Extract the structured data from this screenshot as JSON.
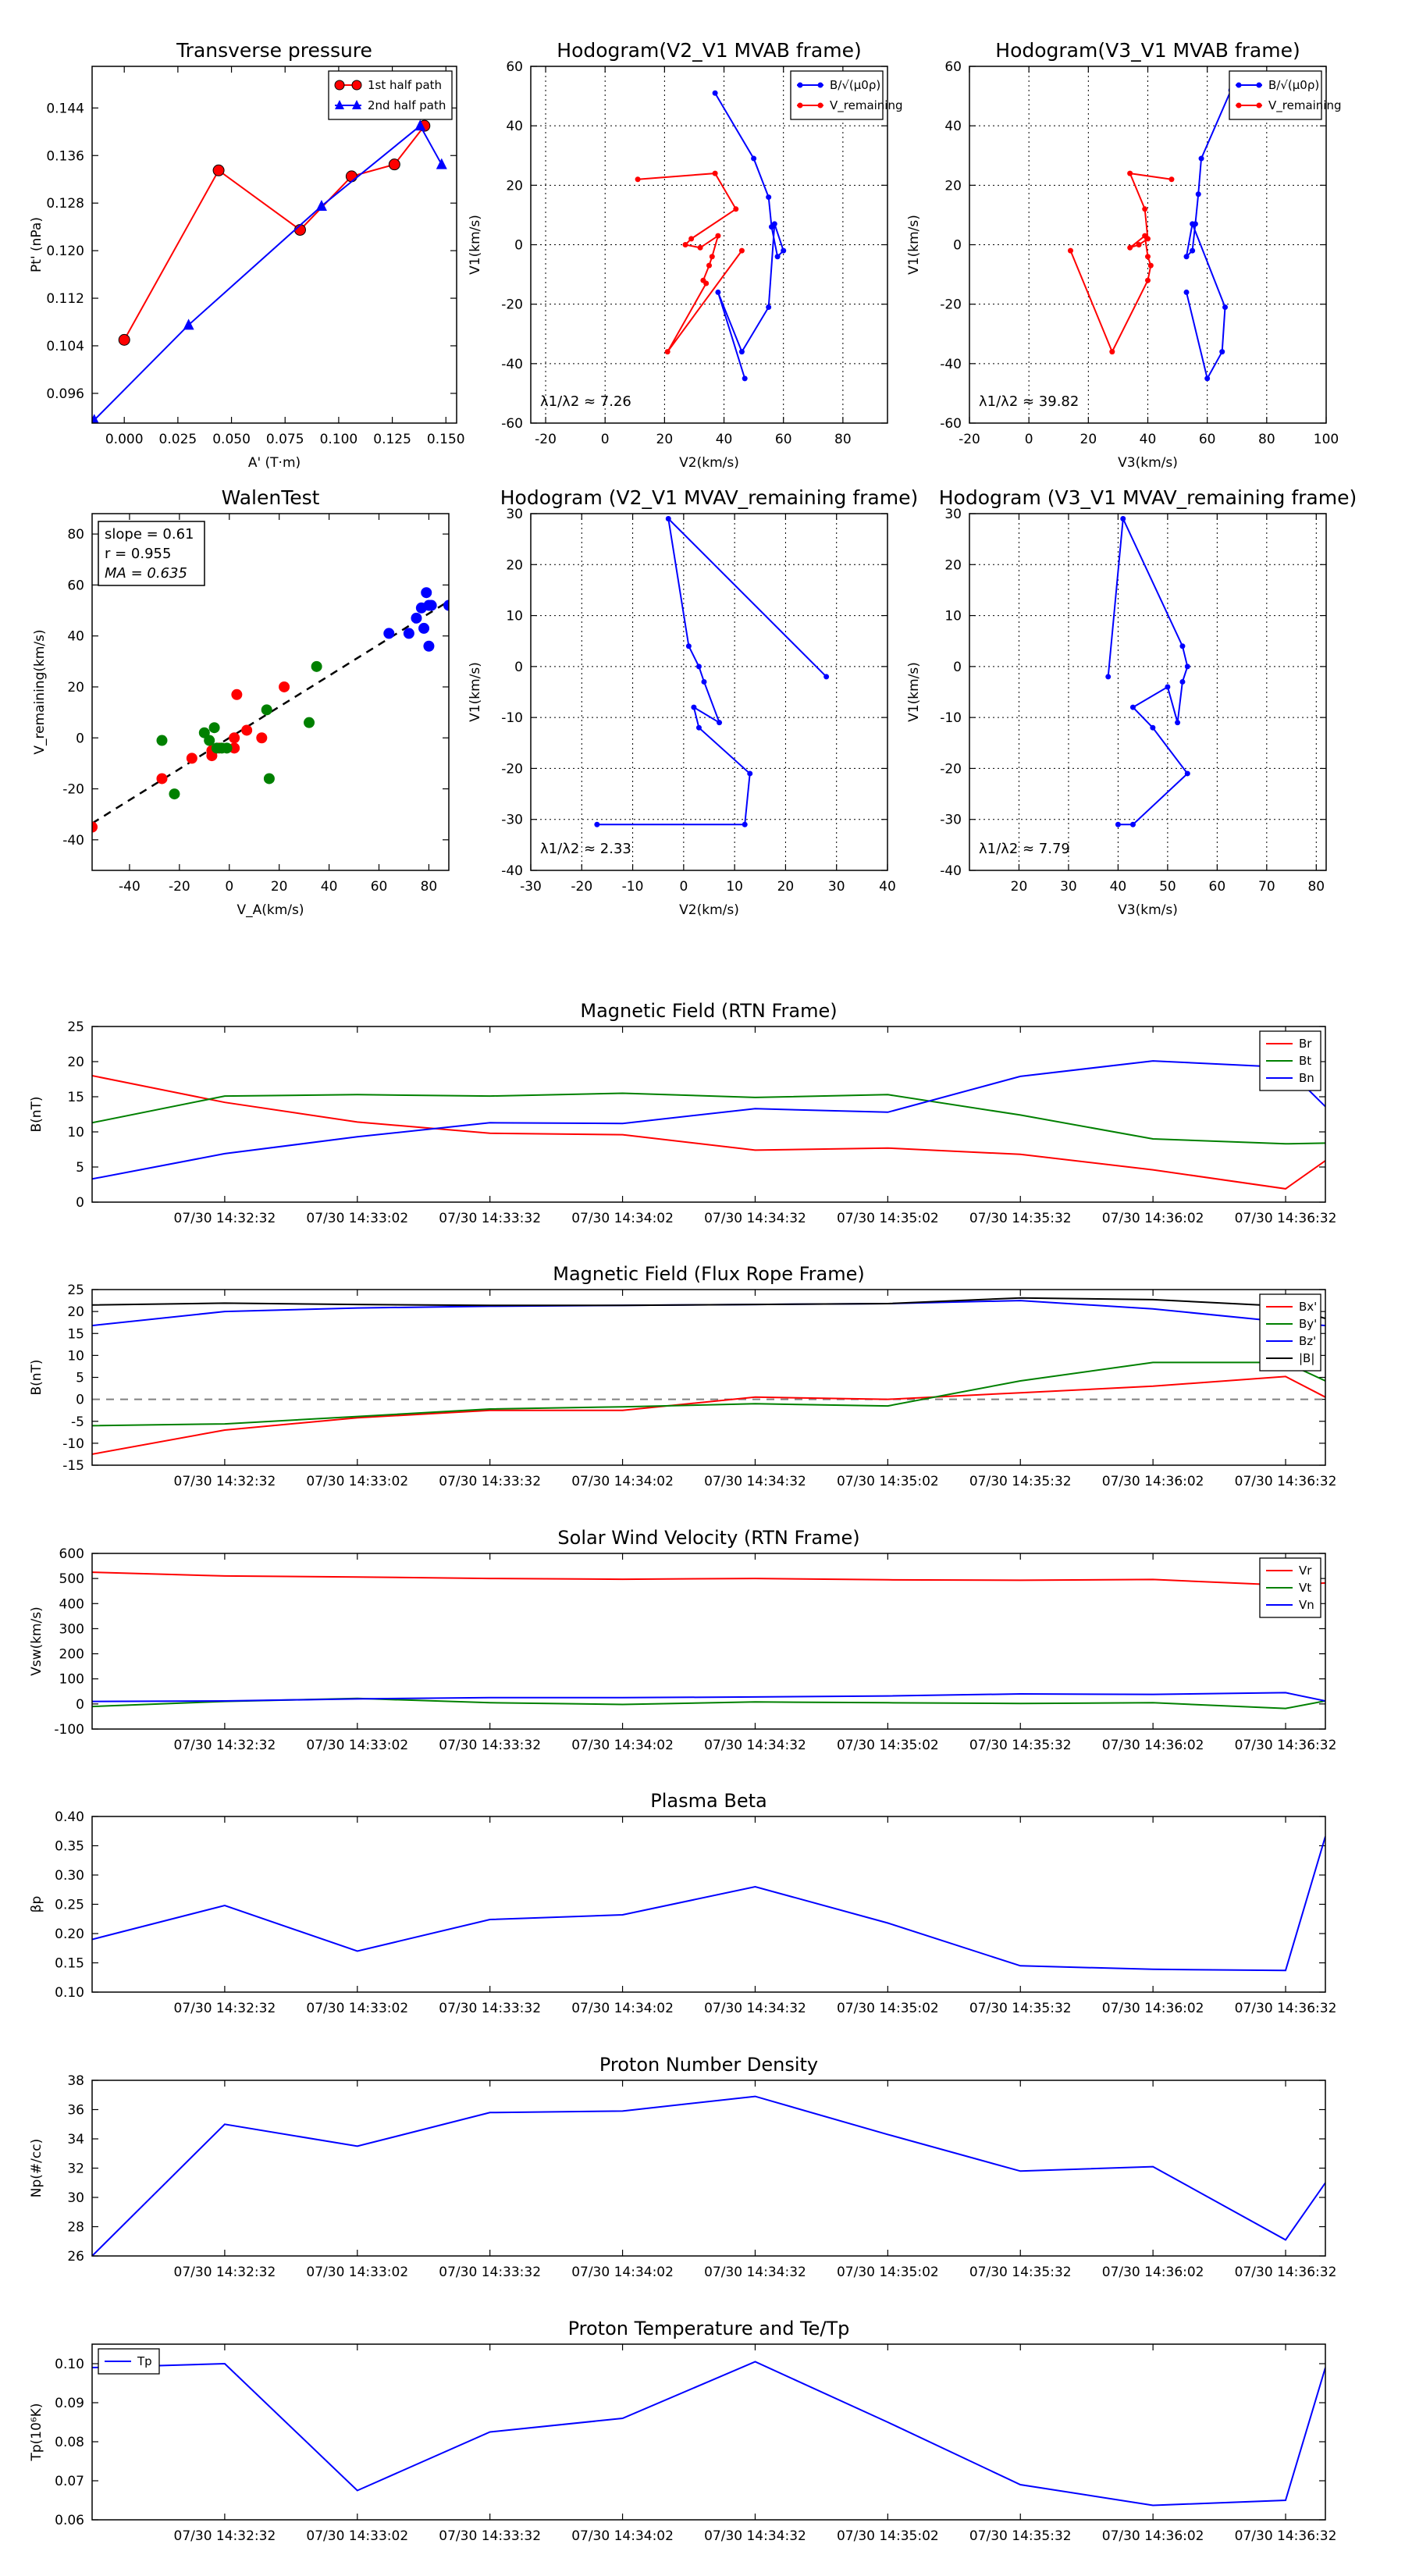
{
  "colors": {
    "red": "#ff0000",
    "green": "#008000",
    "blue": "#0000ff",
    "black": "#000000",
    "gray": "#808080"
  },
  "time_ticks": [
    "07/30 14:32:32",
    "07/30 14:33:02",
    "07/30 14:33:32",
    "07/30 14:34:02",
    "07/30 14:34:32",
    "07/30 14:35:02",
    "07/30 14:35:32",
    "07/30 14:36:02",
    "07/30 14:36:32"
  ],
  "chart_data": [
    {
      "id": "pt",
      "type": "line",
      "title": "Transverse pressure",
      "xlabel": "A' (T·m)",
      "ylabel": "Pt' (nPa)",
      "xlim": [
        -0.015,
        0.155
      ],
      "ylim": [
        0.091,
        0.151
      ],
      "xticks": [
        0.0,
        0.025,
        0.05,
        0.075,
        0.1,
        0.125,
        0.15
      ],
      "xtick_labels": [
        "0.000",
        "0.025",
        "0.050",
        "0.075",
        "0.100",
        "0.125",
        "0.150"
      ],
      "yticks": [
        0.096,
        0.104,
        0.112,
        0.12,
        0.128,
        0.136,
        0.144
      ],
      "ytick_labels": [
        "0.096",
        "0.104",
        "0.112",
        "0.120",
        "0.128",
        "0.136",
        "0.144"
      ],
      "legend": "top-right",
      "series": [
        {
          "name": "1st half path",
          "color": "#ff0000",
          "marker": "circle",
          "x": [
            0.0,
            0.044,
            0.082,
            0.106,
            0.126,
            0.14
          ],
          "y": [
            0.105,
            0.1335,
            0.1235,
            0.1325,
            0.1345,
            0.141
          ]
        },
        {
          "name": "2nd half path",
          "color": "#0000ff",
          "marker": "triangle",
          "x": [
            -0.014,
            0.03,
            0.092,
            0.138,
            0.148
          ],
          "y": [
            0.0915,
            0.1075,
            0.1275,
            0.141,
            0.1345
          ]
        }
      ]
    },
    {
      "id": "h1",
      "type": "line",
      "title": "Hodogram(V2_V1 MVAB frame)",
      "xlabel": "V2(km/s)",
      "ylabel": "V1(km/s)",
      "xlim": [
        -25,
        95
      ],
      "ylim": [
        -60,
        60
      ],
      "xticks": [
        -20,
        0,
        20,
        40,
        60,
        80
      ],
      "yticks": [
        -60,
        -40,
        -20,
        0,
        20,
        40,
        60
      ],
      "annotation": "λ1/λ2 ≈ 7.26",
      "legend": "top-right",
      "grid": true,
      "series": [
        {
          "name": "B/√(μ0ρ)",
          "color": "#0000ff",
          "marker": "dot",
          "x": [
            37,
            50,
            55,
            56,
            58,
            60,
            57,
            55,
            46,
            38,
            47
          ],
          "y": [
            51,
            29,
            16,
            6,
            -4,
            -2,
            7,
            -21,
            -36,
            -16,
            -45
          ]
        },
        {
          "name": "V_remaining",
          "color": "#ff0000",
          "marker": "dot",
          "x": [
            11,
            37,
            44,
            29,
            27,
            32,
            38,
            36,
            35,
            33,
            34,
            21,
            46
          ],
          "y": [
            22,
            24,
            12,
            2,
            0,
            -1,
            3,
            -4,
            -7,
            -12,
            -13,
            -36,
            -2
          ]
        }
      ]
    },
    {
      "id": "h2",
      "type": "line",
      "title": "Hodogram(V3_V1 MVAB frame)",
      "xlabel": "V3(km/s)",
      "ylabel": "V1(km/s)",
      "xlim": [
        -20,
        100
      ],
      "ylim": [
        -60,
        60
      ],
      "xticks": [
        -20,
        0,
        20,
        40,
        60,
        80,
        100
      ],
      "yticks": [
        -60,
        -40,
        -20,
        0,
        20,
        40,
        60
      ],
      "annotation": "λ1/λ2 ≈ 39.82",
      "legend": "top-right",
      "grid": true,
      "series": [
        {
          "name": "B/√(μ0ρ)",
          "color": "#0000ff",
          "marker": "dot",
          "x": [
            68,
            58,
            57,
            56,
            55,
            53,
            55,
            66,
            65,
            60,
            53
          ],
          "y": [
            52,
            29,
            17,
            7,
            -2,
            -4,
            7,
            -21,
            -36,
            -45,
            -16
          ]
        },
        {
          "name": "V_remaining",
          "color": "#ff0000",
          "marker": "dot",
          "x": [
            48,
            34,
            39,
            40,
            37,
            34,
            39,
            40,
            41,
            40,
            28,
            14
          ],
          "y": [
            22,
            24,
            12,
            2,
            0,
            -1,
            3,
            -4,
            -7,
            -12,
            -36,
            -2
          ]
        }
      ]
    },
    {
      "id": "walen",
      "type": "scatter",
      "title": "WalenTest",
      "xlabel": "V_A(km/s)",
      "ylabel": "V_remaining(km/s)",
      "xlim": [
        -55,
        88
      ],
      "ylim": [
        -52,
        88
      ],
      "xticks": [
        -40,
        -20,
        0,
        20,
        40,
        60,
        80
      ],
      "yticks": [
        -40,
        -20,
        0,
        20,
        40,
        60,
        80
      ],
      "fit_line": {
        "slope": 0.61,
        "intercept": 0
      },
      "annotations": {
        "slope": "slope = 0.61",
        "r": "r = 0.955",
        "ma": "MA = 0.635"
      },
      "series": [
        {
          "name": "red",
          "color": "#ff0000",
          "x": [
            -55,
            -27,
            -15,
            -7,
            -7,
            -4,
            2,
            2,
            3,
            7,
            13,
            22
          ],
          "y": [
            -35,
            -16,
            -8,
            -5,
            -7,
            -4,
            0,
            -4,
            17,
            3,
            0,
            20
          ]
        },
        {
          "name": "green",
          "color": "#008000",
          "x": [
            -27,
            -22,
            -10,
            -8,
            -6,
            -5,
            -3,
            -1,
            15,
            16,
            32,
            35
          ],
          "y": [
            -1,
            -22,
            2,
            -1,
            4,
            -4,
            -4,
            -4,
            11,
            -16,
            6,
            28
          ]
        },
        {
          "name": "blue",
          "color": "#0000ff",
          "x": [
            64,
            72,
            75,
            77,
            78,
            79,
            80,
            80,
            81,
            88
          ],
          "y": [
            41,
            41,
            47,
            51,
            43,
            57,
            36,
            52,
            52,
            52
          ]
        }
      ]
    },
    {
      "id": "h3",
      "type": "line",
      "title": "Hodogram (V2_V1 MVAV_remaining frame)",
      "xlabel": "V2(km/s)",
      "ylabel": "V1(km/s)",
      "xlim": [
        -30,
        40
      ],
      "ylim": [
        -40,
        30
      ],
      "xticks": [
        -30,
        -20,
        -10,
        0,
        10,
        20,
        30,
        40
      ],
      "yticks": [
        -40,
        -30,
        -20,
        -10,
        0,
        10,
        20,
        30
      ],
      "annotation": "λ1/λ2 ≈ 2.33",
      "grid": true,
      "series": [
        {
          "name": "V",
          "color": "#0000ff",
          "marker": "dot",
          "x": [
            28,
            -3,
            1,
            3,
            4,
            7,
            2,
            3,
            13,
            12,
            -17
          ],
          "y": [
            -2,
            29,
            4,
            0,
            -3,
            -11,
            -8,
            -12,
            -21,
            -31,
            -31
          ]
        }
      ]
    },
    {
      "id": "h4",
      "type": "line",
      "title": "Hodogram (V3_V1 MVAV_remaining frame)",
      "xlabel": "V3(km/s)",
      "ylabel": "V1(km/s)",
      "xlim": [
        10,
        82
      ],
      "ylim": [
        -40,
        30
      ],
      "xticks": [
        20,
        30,
        40,
        50,
        60,
        70,
        80
      ],
      "yticks": [
        -40,
        -30,
        -20,
        -10,
        0,
        10,
        20,
        30
      ],
      "annotation": "λ1/λ2 ≈ 7.79",
      "grid": true,
      "series": [
        {
          "name": "V",
          "color": "#0000ff",
          "marker": "dot",
          "x": [
            38,
            41,
            53,
            54,
            53,
            52,
            50,
            43,
            47,
            54,
            43,
            40
          ],
          "y": [
            -2,
            29,
            4,
            0,
            -3,
            -11,
            -4,
            -8,
            -12,
            -21,
            -31,
            -31
          ]
        }
      ]
    },
    {
      "id": "mag_rtn",
      "type": "line",
      "title": "Magnetic Field (RTN Frame)",
      "xlabel": "",
      "ylabel": "B(nT)",
      "xlim": [
        0,
        9.3
      ],
      "ylim": [
        0,
        25
      ],
      "yticks": [
        0,
        5,
        10,
        15,
        20,
        25
      ],
      "xticks": [
        1,
        2,
        3,
        4,
        5,
        6,
        7,
        8,
        9
      ],
      "legend": "top-right",
      "series": [
        {
          "name": "Br",
          "color": "#ff0000",
          "x": [
            0,
            1,
            2,
            3,
            4,
            5,
            6,
            7,
            8,
            9,
            9.3
          ],
          "y": [
            18,
            14.2,
            11.4,
            9.8,
            9.6,
            7.4,
            7.7,
            6.8,
            4.6,
            1.9,
            5.9
          ]
        },
        {
          "name": "Bt",
          "color": "#008000",
          "x": [
            0,
            1,
            2,
            3,
            4,
            5,
            6,
            7,
            8,
            9,
            9.3
          ],
          "y": [
            11.3,
            15.1,
            15.3,
            15.1,
            15.5,
            14.9,
            15.3,
            12.4,
            9.0,
            8.3,
            8.4
          ]
        },
        {
          "name": "Bn",
          "color": "#0000ff",
          "x": [
            0,
            1,
            2,
            3,
            4,
            5,
            6,
            7,
            8,
            9,
            9.3
          ],
          "y": [
            3.3,
            6.9,
            9.3,
            11.3,
            11.2,
            13.3,
            12.8,
            17.9,
            20.1,
            19.2,
            13.6
          ]
        }
      ]
    },
    {
      "id": "mag_fr",
      "type": "line",
      "title": "Magnetic Field (Flux Rope Frame)",
      "xlabel": "",
      "ylabel": "B(nT)",
      "xlim": [
        0,
        9.3
      ],
      "ylim": [
        -15,
        25
      ],
      "yticks": [
        -15,
        -10,
        -5,
        0,
        5,
        10,
        15,
        20,
        25
      ],
      "xticks": [
        1,
        2,
        3,
        4,
        5,
        6,
        7,
        8,
        9
      ],
      "legend": "top-right",
      "zero_line": true,
      "series": [
        {
          "name": "Bx'",
          "color": "#ff0000",
          "x": [
            0,
            1,
            2,
            3,
            4,
            5,
            6,
            7,
            8,
            9,
            9.3
          ],
          "y": [
            -12.5,
            -7,
            -4.2,
            -2.5,
            -2.5,
            0.5,
            0,
            1.5,
            3,
            5.2,
            0.5
          ]
        },
        {
          "name": "By'",
          "color": "#008000",
          "x": [
            0,
            1,
            2,
            3,
            4,
            5,
            6,
            7,
            8,
            9,
            9.3
          ],
          "y": [
            -6,
            -5.6,
            -3.9,
            -2.2,
            -1.7,
            -1,
            -1.5,
            4.2,
            8.4,
            8.4,
            4.2
          ]
        },
        {
          "name": "Bz'",
          "color": "#0000ff",
          "x": [
            0,
            1,
            2,
            3,
            4,
            5,
            6,
            7,
            8,
            9,
            9.3
          ],
          "y": [
            16.8,
            20,
            20.8,
            21.2,
            21.4,
            21.6,
            21.8,
            22.5,
            20.6,
            17.6,
            16.8
          ]
        },
        {
          "name": "|B|",
          "color": "#000000",
          "x": [
            0,
            1,
            2,
            3,
            4,
            5,
            6,
            7,
            8,
            9,
            9.3
          ],
          "y": [
            21.5,
            21.9,
            21.6,
            21.4,
            21.4,
            21.6,
            21.8,
            23.1,
            22.7,
            21.2,
            18.4
          ]
        }
      ]
    },
    {
      "id": "vsw",
      "type": "line",
      "title": "Solar Wind Velocity (RTN Frame)",
      "xlabel": "",
      "ylabel": "Vsw(km/s)",
      "xlim": [
        0,
        9.3
      ],
      "ylim": [
        -100,
        600
      ],
      "yticks": [
        -100,
        0,
        100,
        200,
        300,
        400,
        500,
        600
      ],
      "xticks": [
        1,
        2,
        3,
        4,
        5,
        6,
        7,
        8,
        9
      ],
      "legend": "top-right",
      "series": [
        {
          "name": "Vr",
          "color": "#ff0000",
          "x": [
            0,
            1,
            2,
            3,
            4,
            5,
            6,
            7,
            8,
            9,
            9.3
          ],
          "y": [
            525,
            510,
            506,
            500,
            497,
            500,
            495,
            493,
            496,
            473,
            482
          ]
        },
        {
          "name": "Vt",
          "color": "#008000",
          "x": [
            0,
            1,
            2,
            3,
            4,
            5,
            6,
            7,
            8,
            9,
            9.3
          ],
          "y": [
            -10,
            10,
            22,
            5,
            -2,
            8,
            5,
            2,
            5,
            -18,
            12
          ]
        },
        {
          "name": "Vn",
          "color": "#0000ff",
          "x": [
            0,
            1,
            2,
            3,
            4,
            5,
            6,
            7,
            8,
            9,
            9.3
          ],
          "y": [
            10,
            12,
            20,
            25,
            25,
            28,
            32,
            40,
            38,
            45,
            12
          ]
        }
      ]
    },
    {
      "id": "beta",
      "type": "line",
      "title": "Plasma Beta",
      "xlabel": "",
      "ylabel": "βp",
      "xlim": [
        0,
        9.3
      ],
      "ylim": [
        0.1,
        0.4
      ],
      "yticks": [
        0.1,
        0.15,
        0.2,
        0.25,
        0.3,
        0.35,
        0.4
      ],
      "ytick_labels": [
        "0.10",
        "0.15",
        "0.20",
        "0.25",
        "0.30",
        "0.35",
        "0.40"
      ],
      "xticks": [
        1,
        2,
        3,
        4,
        5,
        6,
        7,
        8,
        9
      ],
      "series": [
        {
          "name": "beta",
          "color": "#0000ff",
          "x": [
            0,
            1,
            2,
            3,
            4,
            5,
            6,
            7,
            8,
            9,
            9.3
          ],
          "y": [
            0.19,
            0.248,
            0.17,
            0.224,
            0.232,
            0.28,
            0.218,
            0.145,
            0.139,
            0.137,
            0.366
          ]
        }
      ]
    },
    {
      "id": "np",
      "type": "line",
      "title": "Proton Number Density",
      "xlabel": "",
      "ylabel": "Np(#/cc)",
      "xlim": [
        0,
        9.3
      ],
      "ylim": [
        26,
        38
      ],
      "yticks": [
        26,
        28,
        30,
        32,
        34,
        36,
        38
      ],
      "xticks": [
        1,
        2,
        3,
        4,
        5,
        6,
        7,
        8,
        9
      ],
      "series": [
        {
          "name": "Np",
          "color": "#0000ff",
          "x": [
            0,
            1,
            2,
            3,
            4,
            5,
            6,
            7,
            8,
            9,
            9.3
          ],
          "y": [
            26,
            35,
            33.5,
            35.8,
            35.9,
            36.9,
            34.3,
            31.8,
            32.1,
            27.1,
            31
          ]
        }
      ]
    },
    {
      "id": "tp",
      "type": "line",
      "title": "Proton Temperature and Te/Tp",
      "xlabel": "",
      "ylabel": "Tp(10⁶K)",
      "xlim": [
        0,
        9.3
      ],
      "ylim": [
        0.06,
        0.105
      ],
      "yticks": [
        0.06,
        0.07,
        0.08,
        0.09,
        0.1
      ],
      "ytick_labels": [
        "0.06",
        "0.07",
        "0.08",
        "0.09",
        "0.10"
      ],
      "xticks": [
        1,
        2,
        3,
        4,
        5,
        6,
        7,
        8,
        9
      ],
      "legend": "top-left",
      "series": [
        {
          "name": "Tp",
          "color": "#0000ff",
          "x": [
            0,
            1,
            2,
            3,
            4,
            5,
            6,
            7,
            8,
            9,
            9.3
          ],
          "y": [
            0.099,
            0.1,
            0.0675,
            0.0825,
            0.086,
            0.1005,
            0.085,
            0.069,
            0.0637,
            0.065,
            0.099
          ]
        }
      ]
    }
  ]
}
